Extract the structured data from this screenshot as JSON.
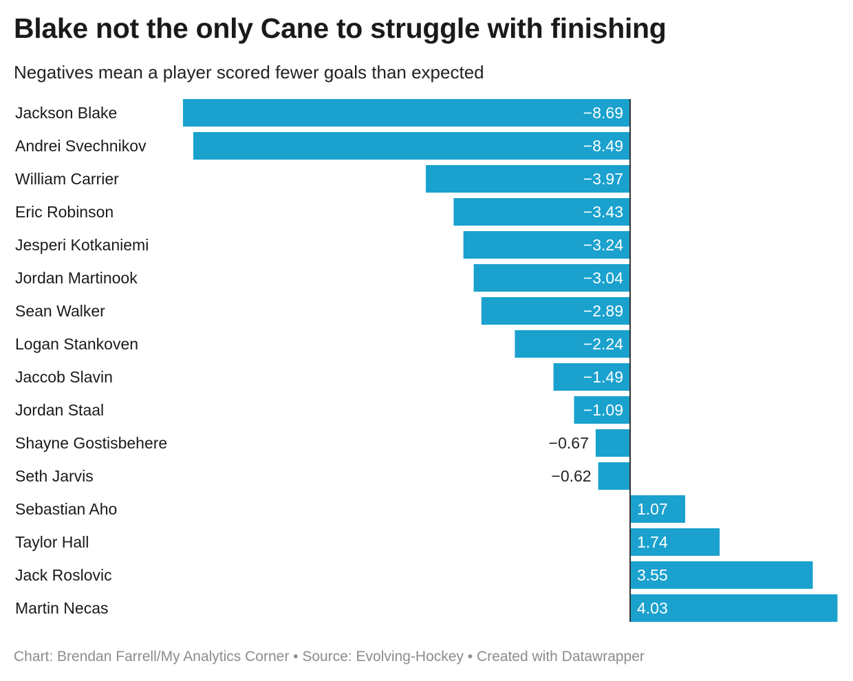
{
  "header": {
    "title": "Blake not the only Cane to struggle with finishing",
    "subtitle": "Negatives mean a player scored fewer goals than expected"
  },
  "footer": {
    "credit": "Chart: Brendan Farrell/My Analytics Corner • Source: Evolving-Hockey • Created with Datawrapper"
  },
  "colors": {
    "bar": "#1aa1ce",
    "axis": "#333333",
    "label_inside": "#ffffff",
    "label_outside": "#222222"
  },
  "chart_data": {
    "type": "bar",
    "orientation": "horizontal",
    "title": "Blake not the only Cane to struggle with finishing",
    "subtitle": "Negatives mean a player scored fewer goals than expected",
    "xlabel": "",
    "ylabel": "",
    "categories": [
      "Jackson Blake",
      "Andrei Svechnikov",
      "William Carrier",
      "Eric Robinson",
      "Jesperi Kotkaniemi",
      "Jordan Martinook",
      "Sean Walker",
      "Logan Stankoven",
      "Jaccob Slavin",
      "Jordan Staal",
      "Shayne Gostisbehere",
      "Seth Jarvis",
      "Sebastian Aho",
      "Taylor Hall",
      "Jack Roslovic",
      "Martin Necas"
    ],
    "values": [
      -8.69,
      -8.49,
      -3.97,
      -3.43,
      -3.24,
      -3.04,
      -2.89,
      -2.24,
      -1.49,
      -1.09,
      -0.67,
      -0.62,
      1.07,
      1.74,
      3.55,
      4.03
    ],
    "value_labels": [
      "−8.69",
      "−8.49",
      "−3.97",
      "−3.43",
      "−3.24",
      "−3.04",
      "−2.89",
      "−2.24",
      "−1.49",
      "−1.09",
      "−0.67",
      "−0.62",
      "1.07",
      "1.74",
      "3.55",
      "4.03"
    ],
    "xlim": [
      -8.69,
      4.03
    ],
    "grid": false,
    "legend": "none"
  }
}
